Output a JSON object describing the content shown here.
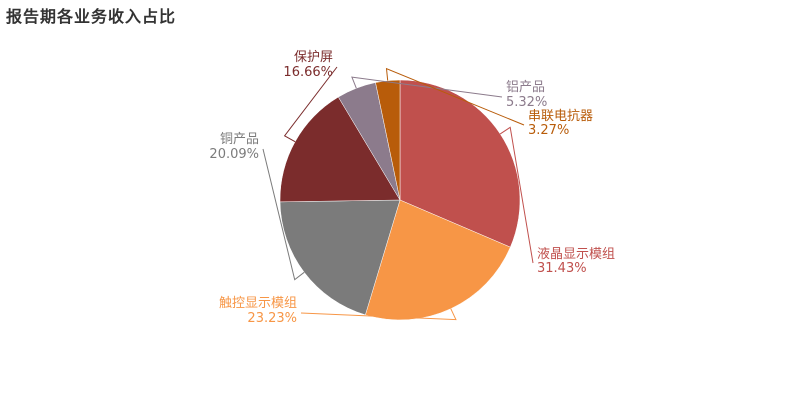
{
  "chart_data": {
    "type": "pie",
    "title": "报告期各业务收入占比",
    "slices": [
      {
        "name": "液晶显示模组",
        "value": 31.43,
        "pct_label": "31.43%",
        "color": "#c0504d"
      },
      {
        "name": "触控显示模组",
        "value": 23.23,
        "pct_label": "23.23%",
        "color": "#f79646"
      },
      {
        "name": "铜产品",
        "value": 20.09,
        "pct_label": "20.09%",
        "color": "#7b7b7b"
      },
      {
        "name": "保护屏",
        "value": 16.66,
        "pct_label": "16.66%",
        "color": "#7b2c2c"
      },
      {
        "name": "铝产品",
        "value": 5.32,
        "pct_label": "5.32%",
        "color": "#8c7b8c"
      },
      {
        "name": "串联电抗器",
        "value": 3.27,
        "pct_label": "3.27%",
        "color": "#b85c0a"
      }
    ]
  }
}
